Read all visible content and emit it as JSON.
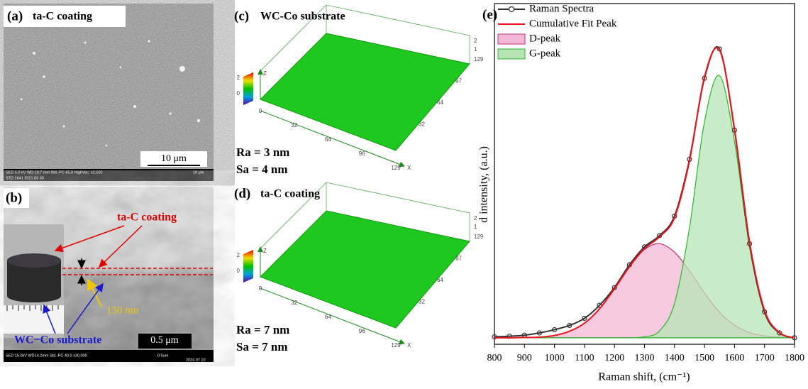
{
  "panel_a": {
    "label": "(a)",
    "title": "ta-C coating",
    "scale_bar": "10 μm",
    "footer": [
      "SED 5.0 kV WD 10.7 mm Std.-PC 65.0 HighVac. x2,500",
      "STD 1641 2021 03 30",
      "10 μm"
    ]
  },
  "panel_b": {
    "label": "(b)",
    "coating_label": "ta-C coating",
    "substrate_label": "WC−Co substrate",
    "thickness_label": "150 nm",
    "scale_bar": "0.5 μm",
    "footer": [
      "SED 15.0kV WD14.2mm Std.-PC 40.0 x30,000",
      "0.5um",
      "2024 07 10"
    ]
  },
  "panel_c": {
    "label": "(c)",
    "title": "WC-Co substrate",
    "ra": "Ra = 3 nm",
    "sa": "Sa = 4 nm",
    "x_ticks": [
      0,
      32,
      64,
      96,
      129
    ],
    "y_ticks": [
      129,
      97,
      64,
      32
    ],
    "z_ticks": [
      2,
      1
    ],
    "colorbar_ticks": [
      2,
      0
    ],
    "z_axis": "Z",
    "x_axis": "X"
  },
  "panel_d": {
    "label": "(d)",
    "title": "ta-C coating",
    "ra": "Ra = 7 nm",
    "sa": "Sa = 7 nm",
    "x_ticks": [
      0,
      32,
      64,
      96,
      129
    ],
    "y_ticks": [
      129,
      97,
      64,
      32
    ],
    "z_ticks": [
      2,
      1
    ],
    "colorbar_ticks": [
      2,
      0
    ],
    "z_axis": "Z",
    "x_axis": "X"
  },
  "panel_e": {
    "label": "(e)"
  },
  "chart_data": {
    "type": "line",
    "xlabel": "Raman shift, (cm⁻¹)",
    "ylabel": "d intensity, (a.u.)",
    "x": [
      800,
      850,
      900,
      950,
      1000,
      1050,
      1100,
      1150,
      1200,
      1250,
      1300,
      1350,
      1400,
      1450,
      1500,
      1550,
      1600,
      1650,
      1700,
      1750,
      1800
    ],
    "series": [
      {
        "name": "Raman Spectra",
        "color": "#333333",
        "marker": "o",
        "values": [
          2.3,
          2.5,
          2.8,
          3.5,
          4.5,
          5.8,
          8.0,
          12.0,
          17.5,
          24.5,
          30.0,
          33.5,
          39.5,
          57.0,
          82.0,
          91.0,
          66.0,
          31.0,
          10.0,
          3.5,
          2.0
        ]
      },
      {
        "name": "Cumulative Fit Peak",
        "color": "#e8141e",
        "values": [
          2.0,
          2.0,
          2.1,
          2.2,
          2.7,
          4.0,
          6.5,
          10.9,
          17.1,
          23.9,
          29.5,
          33.1,
          39.0,
          56.5,
          82.4,
          90.7,
          66.4,
          31.6,
          10.5,
          3.6,
          2.0
        ]
      },
      {
        "name": "D-peak",
        "color": "#c0306e",
        "fill": "#f4b8d8",
        "values": [
          2.0,
          2.0,
          2.1,
          2.2,
          2.7,
          4.0,
          6.5,
          10.9,
          17.1,
          23.9,
          29.2,
          31.0,
          28.4,
          22.6,
          15.8,
          9.9,
          5.9,
          3.6,
          2.6,
          2.2,
          2.0
        ]
      },
      {
        "name": "G-peak",
        "color": "#2db42d",
        "fill": "#b8e4b4",
        "values": [
          2.0,
          2.0,
          2.0,
          2.0,
          2.0,
          2.0,
          2.0,
          2.0,
          2.0,
          2.0,
          2.3,
          4.1,
          12.6,
          35.9,
          68.6,
          82.8,
          62.5,
          30.0,
          9.9,
          3.4,
          2.0
        ]
      }
    ],
    "xlim": [
      800,
      1800
    ],
    "ylim": [
      0,
      105
    ],
    "xticks": [
      800,
      900,
      1000,
      1100,
      1200,
      1300,
      1400,
      1500,
      1600,
      1700,
      1800
    ],
    "legend": "upper left"
  }
}
